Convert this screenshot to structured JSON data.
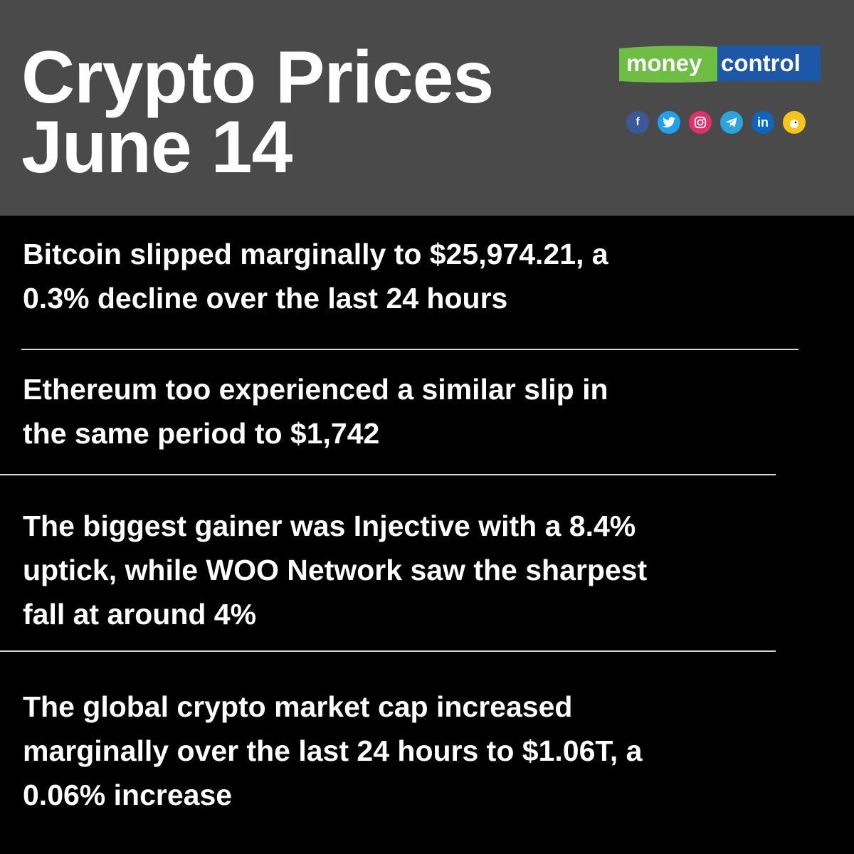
{
  "header": {
    "title_line1": "Crypto Prices",
    "title_line2": "June 14",
    "logo": {
      "part1": "money",
      "part2": "control",
      "green": "#6fbe44",
      "blue": "#1d57a8"
    },
    "social_icons": [
      "facebook-icon",
      "twitter-icon",
      "instagram-icon",
      "telegram-icon",
      "linkedin-icon",
      "koo-icon"
    ]
  },
  "blocks": [
    {
      "line1": "Bitcoin slipped marginally to $25,974.21, a",
      "line2": "0.3% decline over the last 24 hours"
    },
    {
      "line1": "Ethereum too experienced a similar slip in",
      "line2": "the same period to $1,742"
    },
    {
      "line1": "The biggest gainer was Injective with a 8.4%",
      "line2": "uptick, while WOO Network saw the sharpest",
      "line3": "fall at around 4%"
    },
    {
      "line1": "The global crypto market cap increased",
      "line2": "marginally over the last 24 hours to $1.06T, a",
      "line3": "0.06% increase"
    }
  ],
  "colors": {
    "header_bg": "#4a4a4a",
    "body_bg": "#000000",
    "text": "#ffffff"
  }
}
